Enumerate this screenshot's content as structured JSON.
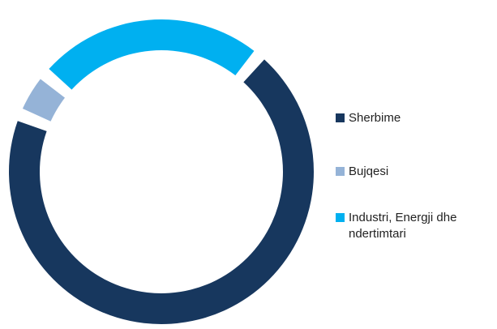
{
  "chart_data": {
    "type": "donut",
    "categories": [
      "Sherbime",
      "Bujqesi",
      "Industri, Energji dhe ndertimtari"
    ],
    "values": [
      70,
      5,
      25
    ],
    "colors": [
      "#17375e",
      "#95b3d7",
      "#00b0f0"
    ],
    "legend": "right"
  }
}
